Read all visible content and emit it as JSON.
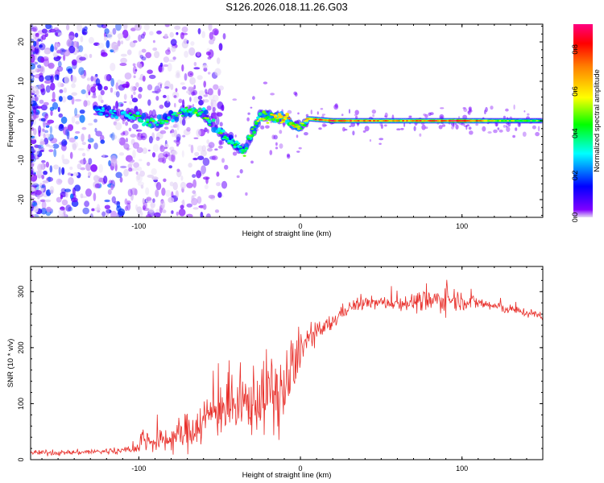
{
  "title": "S126.2026.018.11.26.G03",
  "chart_data": [
    {
      "type": "heatmap",
      "panel": "spectrogram",
      "xlabel": "Height of straight line (km)",
      "ylabel": "Frequency (Hz)",
      "xlim": [
        -167,
        150
      ],
      "ylim": [
        -24.5,
        24.5
      ],
      "xticks": [
        "-100",
        "0",
        "100"
      ],
      "yticks": [
        "-20",
        "-10",
        "0",
        "10",
        "20"
      ],
      "colorbar": {
        "label": "Normalized spectral amplitude",
        "range": [
          0,
          0.92
        ],
        "ticks": [
          "0.0",
          "0.2",
          "0.4",
          "0.6",
          "0.8"
        ],
        "colormap": [
          "#e6dcf5",
          "#8000ff",
          "#0000ff",
          "#00ffff",
          "#00ff00",
          "#ffff00",
          "#ff8000",
          "#ff0000",
          "#ff0080"
        ]
      },
      "ridge": {
        "x": [
          -167,
          -150,
          -130,
          -110,
          -100,
          -90,
          -80,
          -70,
          -60,
          -50,
          -40,
          -35,
          -30,
          -25,
          -20,
          -10,
          -5,
          0,
          5,
          20,
          40,
          60,
          80,
          100,
          120,
          150
        ],
        "frequency": [
          0,
          1,
          3,
          1.5,
          1,
          -0.5,
          1,
          2.5,
          2,
          -3,
          -6,
          -8,
          -3,
          1.5,
          1,
          0.5,
          -0.8,
          -2,
          0.5,
          0,
          0,
          0,
          0,
          0,
          0,
          0
        ],
        "amplitude": [
          0.2,
          0.25,
          0.3,
          0.35,
          0.45,
          0.5,
          0.45,
          0.5,
          0.5,
          0.45,
          0.4,
          0.45,
          0.5,
          0.55,
          0.6,
          0.75,
          0.65,
          0.6,
          0.75,
          0.85,
          0.8,
          0.75,
          0.8,
          0.9,
          0.6,
          0.5
        ]
      }
    },
    {
      "type": "line",
      "panel": "snr",
      "xlabel": "Height of straight line (km)",
      "ylabel": "SNR (10 * v/v)",
      "xlim": [
        -167,
        150
      ],
      "ylim": [
        0,
        345
      ],
      "xticks": [
        "-100",
        "0",
        "100"
      ],
      "yticks": [
        "0",
        "100",
        "200",
        "300"
      ],
      "color": "#e8302b",
      "series": [
        {
          "name": "SNR",
          "x": [
            -167,
            -150,
            -130,
            -110,
            -100,
            -98,
            -90,
            -80,
            -70,
            -60,
            -50,
            -40,
            -30,
            -20,
            -10,
            -5,
            0,
            5,
            10,
            20,
            25,
            30,
            40,
            60,
            80,
            90,
            100,
            110,
            130,
            150
          ],
          "values": [
            13,
            12,
            14,
            16,
            22,
            40,
            30,
            38,
            50,
            70,
            95,
            90,
            105,
            120,
            120,
            155,
            200,
            215,
            225,
            245,
            262,
            272,
            280,
            280,
            282,
            288,
            285,
            280,
            268,
            257
          ],
          "noise": [
            6,
            5,
            6,
            7,
            12,
            25,
            22,
            30,
            40,
            50,
            60,
            65,
            70,
            80,
            90,
            70,
            35,
            28,
            22,
            18,
            15,
            14,
            13,
            14,
            25,
            30,
            20,
            14,
            10,
            8
          ]
        }
      ]
    }
  ]
}
